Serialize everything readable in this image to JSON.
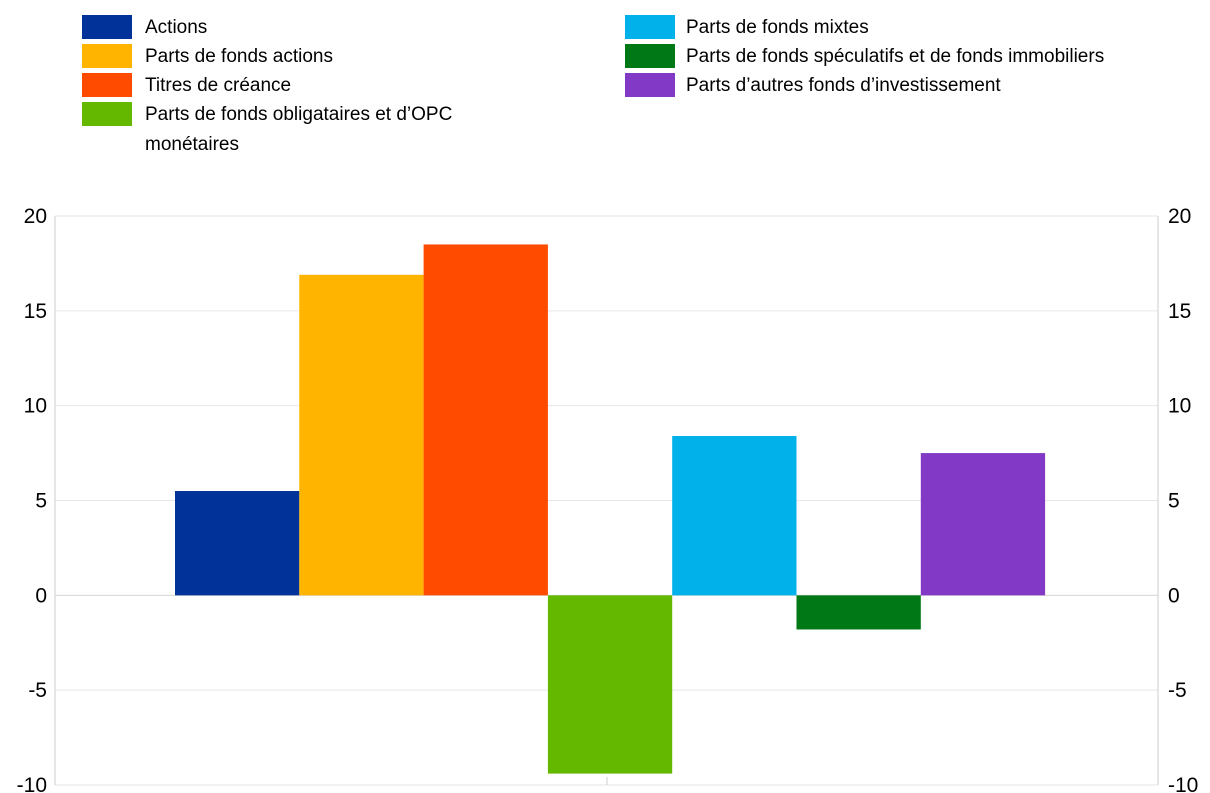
{
  "chart_data": {
    "type": "bar",
    "title": "",
    "xlabel": "",
    "ylabel": "",
    "ylim": [
      -10,
      20
    ],
    "yticks": [
      "20",
      "15",
      "10",
      "5",
      "0",
      "-5",
      "-10"
    ],
    "grid": true,
    "legend_position": "top",
    "series": [
      {
        "name": "Actions",
        "value": 5.5,
        "color": "#003299"
      },
      {
        "name": "Parts de fonds actions",
        "value": 16.9,
        "color": "#FFB400"
      },
      {
        "name": "Titres de créance",
        "value": 18.5,
        "color": "#FF4B00"
      },
      {
        "name": "Parts de fonds obligataires et d’OPC monétaires",
        "legend_lines": [
          "Parts de fonds obligataires et d’OPC",
          "monétaires"
        ],
        "value": -9.4,
        "color": "#65B800"
      },
      {
        "name": "Parts de fonds mixtes",
        "value": 8.4,
        "color": "#00B1EA"
      },
      {
        "name": "Parts de fonds spéculatifs et de fonds immobiliers",
        "value": -1.8,
        "color": "#007816"
      },
      {
        "name": "Parts d’autres fonds d’investissement",
        "value": 7.5,
        "color": "#8139C6"
      }
    ]
  }
}
